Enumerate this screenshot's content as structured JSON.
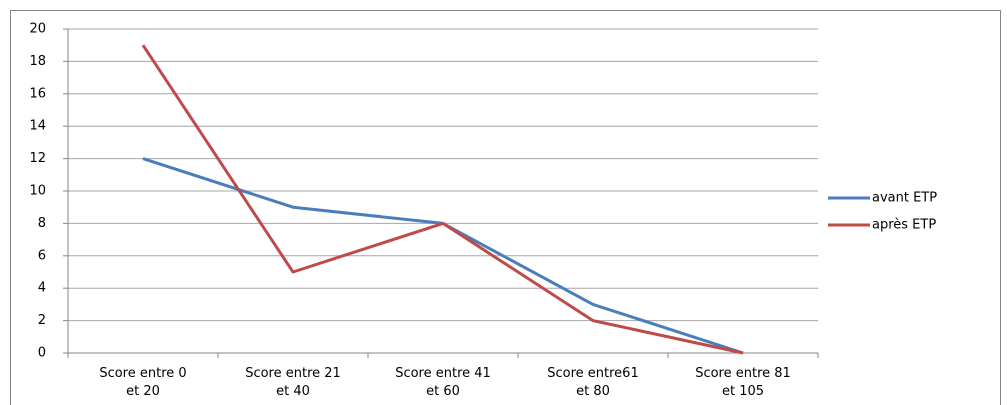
{
  "chart_data": {
    "type": "line",
    "categories": [
      "Score entre 0 et 20",
      "Score entre 21 et 40",
      "Score entre 41 et 60",
      "Score entre61 et 80",
      "Score entre 81 et 105"
    ],
    "series": [
      {
        "name": "avant ETP",
        "color": "#4a7ebb",
        "values": [
          12,
          9,
          8,
          3,
          0
        ]
      },
      {
        "name": "après ETP",
        "color": "#be4b48",
        "values": [
          19,
          5,
          8,
          2,
          0
        ]
      }
    ],
    "ylim": [
      0,
      20
    ],
    "yticks": [
      0,
      2,
      4,
      6,
      8,
      10,
      12,
      14,
      16,
      18,
      20
    ],
    "grid": true,
    "legend": "right"
  }
}
